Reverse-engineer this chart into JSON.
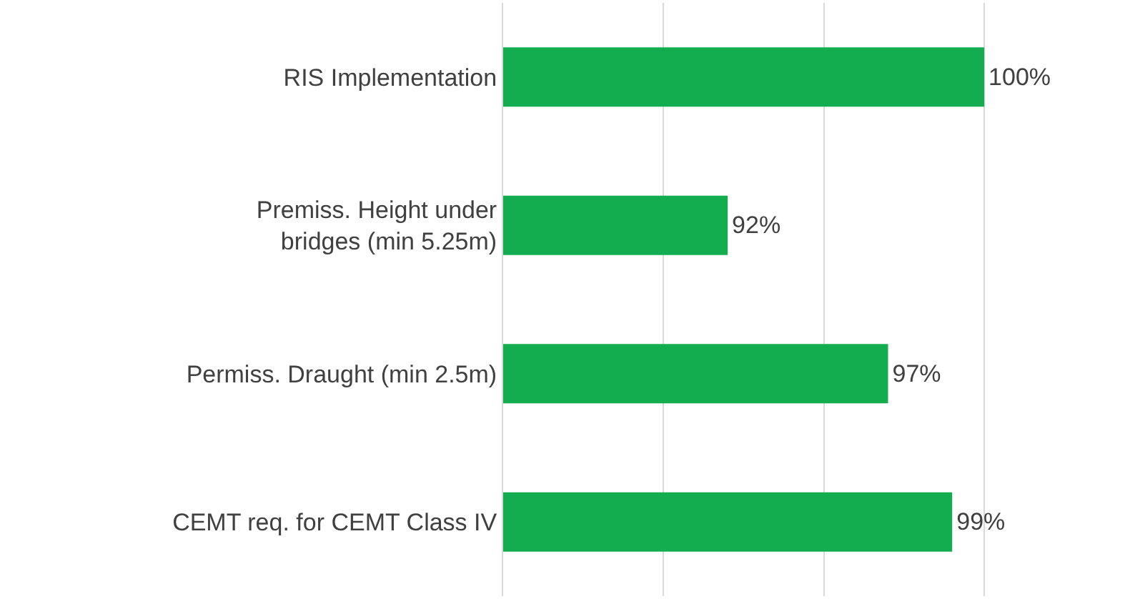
{
  "chart_data": {
    "type": "bar",
    "orientation": "horizontal",
    "categories": [
      "RIS Implementation",
      "Premiss. Height under bridges (min 5.25m)",
      "Permiss. Draught (min 2.5m)",
      "CEMT req. for CEMT Class IV"
    ],
    "values": [
      100,
      92,
      97,
      99
    ],
    "value_labels": [
      "100%",
      "92%",
      "97%",
      "99%"
    ],
    "color": "#13ad4f",
    "xlim": [
      85,
      104.7
    ],
    "xticks": [
      {
        "value": 85,
        "label": null
      },
      {
        "value": 90,
        "label": null
      },
      {
        "value": 95,
        "label": null
      },
      {
        "value": 100,
        "label": null
      }
    ],
    "grid": "x",
    "tick_labels": "y",
    "legend": false
  }
}
